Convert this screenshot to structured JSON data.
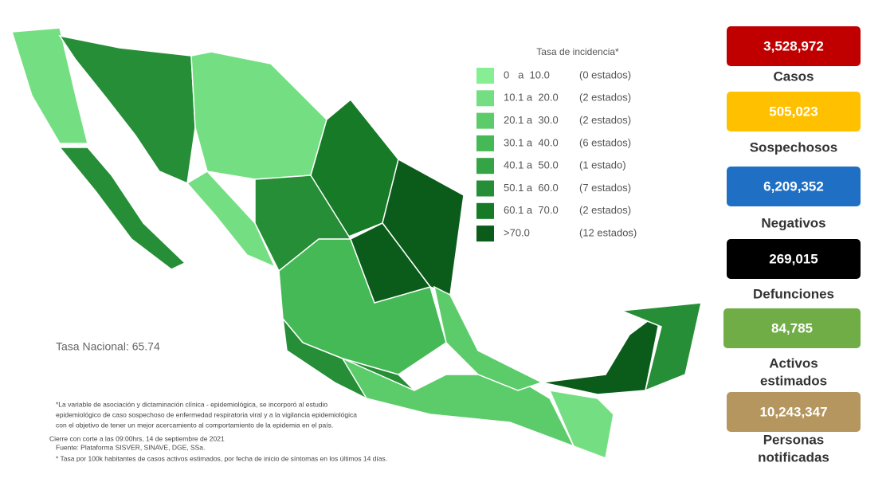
{
  "legend": {
    "title": "Tasa de incidencia*",
    "items": [
      {
        "range": "0   a  10.0",
        "count": "(0 estados)",
        "color": "#86ef94"
      },
      {
        "range": "10.1 a  20.0",
        "count": "(2 estados)",
        "color": "#74df82"
      },
      {
        "range": "20.1 a  30.0",
        "count": "(2 estados)",
        "color": "#5ccc6b"
      },
      {
        "range": "30.1 a  40.0",
        "count": "(6 estados)",
        "color": "#45b955"
      },
      {
        "range": "40.1 a  50.0",
        "count": "(1 estado)",
        "color": "#34a444"
      },
      {
        "range": "50.1 a  60.0",
        "count": "(7 estados)",
        "color": "#268e36"
      },
      {
        "range": "60.1 a  70.0",
        "count": "(2 estados)",
        "color": "#167a27"
      },
      {
        "range": ">70.0",
        "count": "(12 estados)",
        "color": "#0b5c1a"
      }
    ]
  },
  "national_rate": "Tasa Nacional: 65.74",
  "notes": [
    "*La variable de asociación y dictaminación clínica - epidemiológica, se incorporó al estudio",
    "epidemiológico de caso sospechoso de enfermedad respiratoria viral y a la vigilancia epidemiológica",
    "con el objetivo de tener un mejor acercamiento al comportamiento de la epidemia en el país.",
    "Cierre con corte a las 09:00hrs, 14 de septiembre de 2021",
    "Fuente: Plataforma SISVER, SINAVE, DGE, SSa.",
    "* Tasa por 100k habitantes de casos activos estimados, por fecha de inicio de síntomas en los últimos 14 días."
  ],
  "stats": [
    {
      "value": "3,528,972",
      "label": [
        "Casos"
      ],
      "color": "#c00000"
    },
    {
      "value": "505,023",
      "label": [
        "Sospechosos"
      ],
      "color": "#ffc000"
    },
    {
      "value": "6,209,352",
      "label": [
        "Negativos"
      ],
      "color": "#1f6fc5"
    },
    {
      "value": "269,015",
      "label": [
        "Defunciones"
      ],
      "color": "#000000"
    },
    {
      "value": "84,785",
      "label": [
        "Activos",
        "estimados"
      ],
      "color": "#70ad47"
    },
    {
      "value": "10,243,347",
      "label": [
        "Personas",
        "notificadas"
      ],
      "color": "#b5965e"
    }
  ]
}
